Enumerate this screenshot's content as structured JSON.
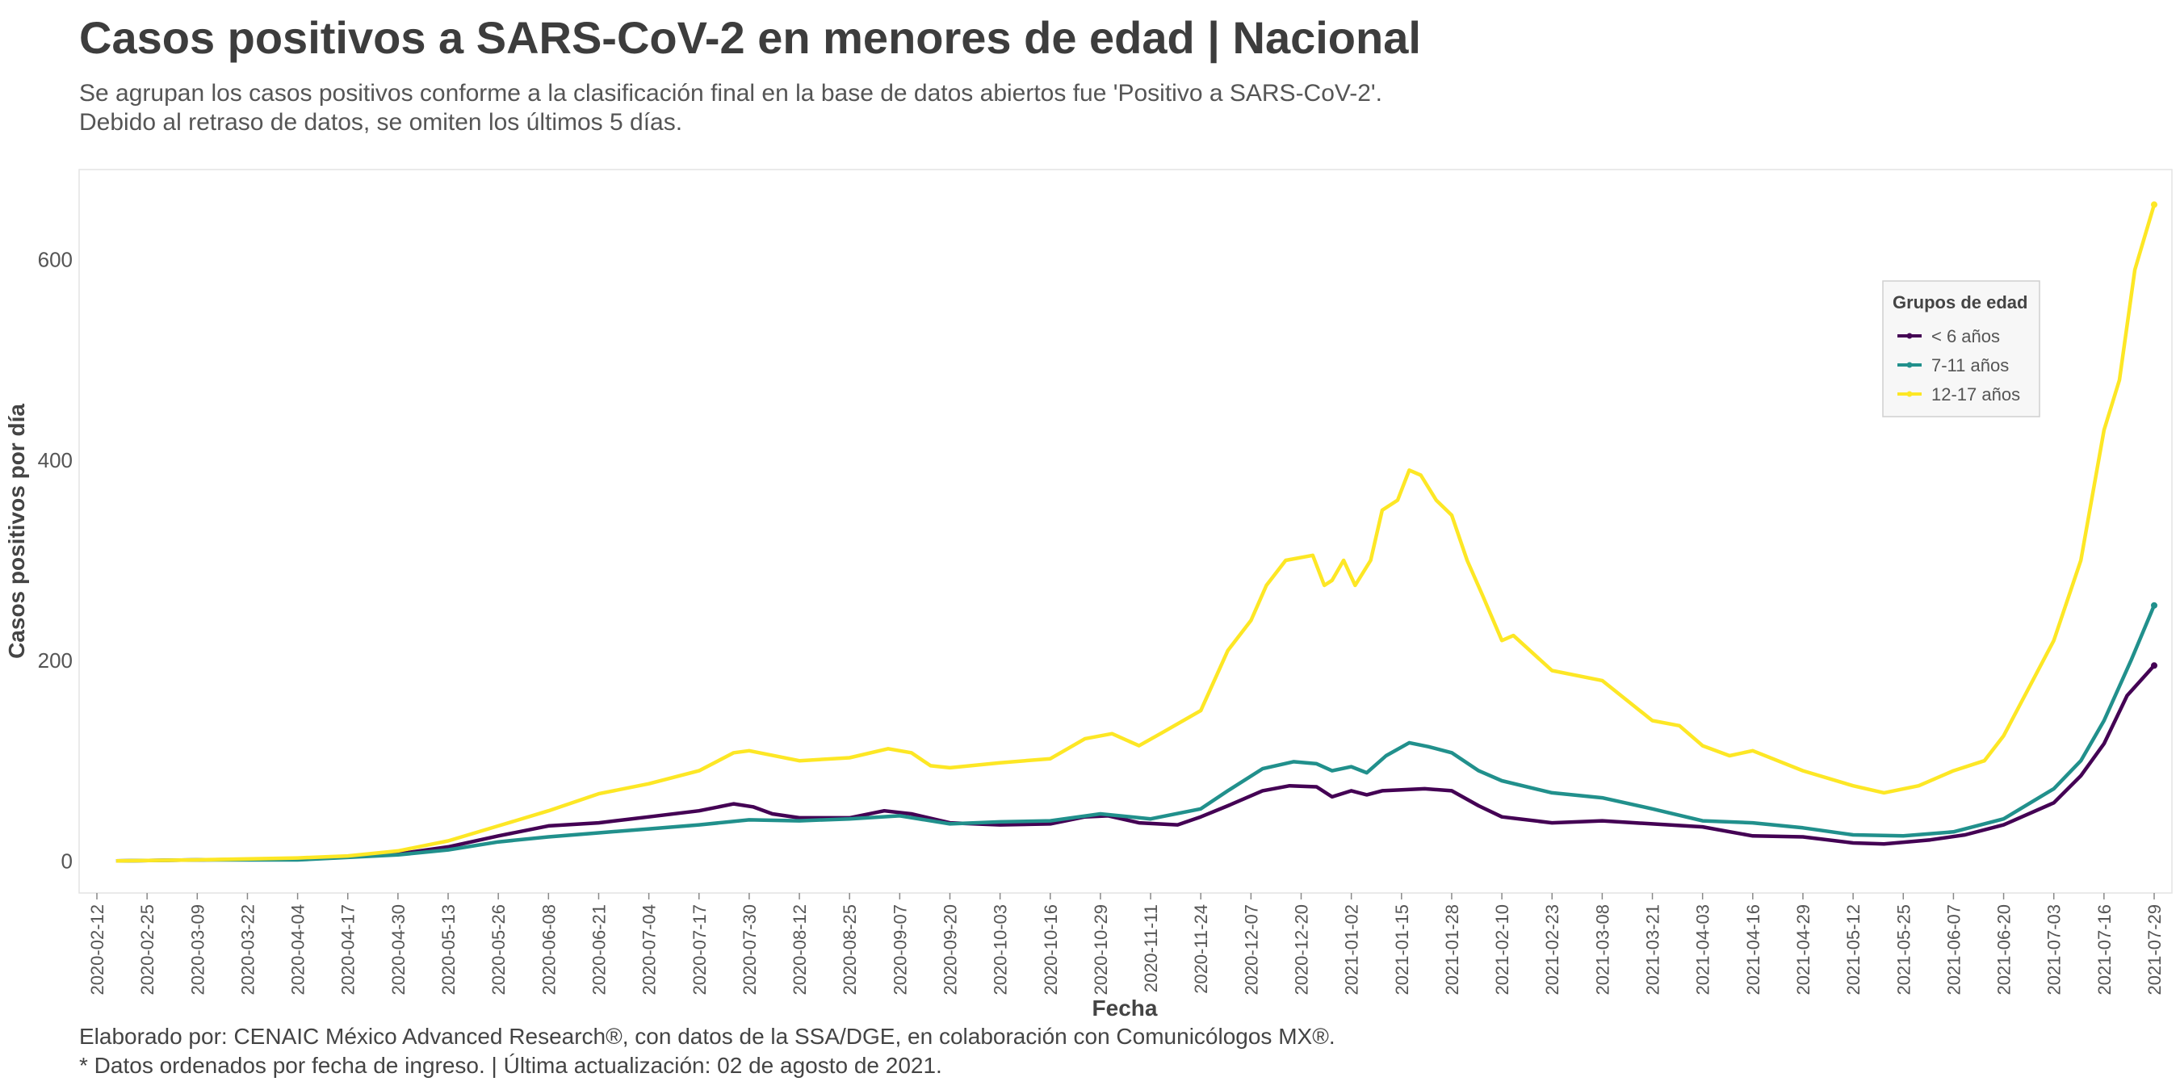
{
  "title": "Casos positivos a SARS-CoV-2 en menores de edad | Nacional",
  "subtitle": [
    "Se agrupan los casos positivos conforme a la clasificación final en la base de datos abiertos fue 'Positivo a SARS-CoV-2'.",
    "Debido al retraso de datos, se omiten los últimos 5 días."
  ],
  "caption": [
    "Elaborado por: CENAIC México Advanced Research®, con datos de la SSA/DGE, en colaboración con Comunicólogos MX®.",
    "* Datos ordenados por fecha de ingreso. | Última actualización: 02 de agosto de 2021."
  ],
  "chart_data": {
    "type": "line",
    "title": "Casos positivos a SARS-CoV-2 en menores de edad | Nacional",
    "xlabel": "Fecha",
    "ylabel": "Casos positivos por día",
    "ylim": [
      -32,
      690
    ],
    "yticks": [
      0,
      200,
      400,
      600
    ],
    "xlim": [
      "2020-02-12",
      "2021-07-29"
    ],
    "x_tick_labels": [
      "2020-02-12",
      "2020-02-25",
      "2020-03-09",
      "2020-03-22",
      "2020-04-04",
      "2020-04-17",
      "2020-04-30",
      "2020-05-13",
      "2020-05-26",
      "2020-06-08",
      "2020-06-21",
      "2020-07-04",
      "2020-07-17",
      "2020-07-30",
      "2020-08-12",
      "2020-08-25",
      "2020-09-07",
      "2020-09-20",
      "2020-10-03",
      "2020-10-16",
      "2020-10-29",
      "2020-11-11",
      "2020-11-24",
      "2020-12-07",
      "2020-12-20",
      "2021-01-02",
      "2021-01-15",
      "2021-01-28",
      "2021-02-10",
      "2021-02-23",
      "2021-03-08",
      "2021-03-21",
      "2021-04-03",
      "2021-04-16",
      "2021-04-29",
      "2021-05-12",
      "2021-05-25",
      "2021-06-07",
      "2021-06-20",
      "2021-07-03",
      "2021-07-16",
      "2021-07-29"
    ],
    "grid": false,
    "legend": {
      "title": "Grupos de edad",
      "placement": "top-right"
    },
    "series": [
      {
        "name": "< 6 años",
        "color": "#440154",
        "points": [
          [
            "2020-02-17",
            0
          ],
          [
            "2020-03-09",
            1
          ],
          [
            "2020-04-04",
            2
          ],
          [
            "2020-04-30",
            7
          ],
          [
            "2020-05-13",
            14
          ],
          [
            "2020-05-26",
            25
          ],
          [
            "2020-06-08",
            35
          ],
          [
            "2020-06-21",
            38
          ],
          [
            "2020-07-04",
            44
          ],
          [
            "2020-07-17",
            50
          ],
          [
            "2020-07-26",
            57
          ],
          [
            "2020-07-31",
            54
          ],
          [
            "2020-08-05",
            47
          ],
          [
            "2020-08-12",
            43
          ],
          [
            "2020-08-25",
            43
          ],
          [
            "2020-09-03",
            50
          ],
          [
            "2020-09-10",
            47
          ],
          [
            "2020-09-20",
            38
          ],
          [
            "2020-10-03",
            36
          ],
          [
            "2020-10-16",
            37
          ],
          [
            "2020-10-25",
            44
          ],
          [
            "2020-10-31",
            45
          ],
          [
            "2020-11-08",
            38
          ],
          [
            "2020-11-18",
            36
          ],
          [
            "2020-11-24",
            44
          ],
          [
            "2020-12-01",
            55
          ],
          [
            "2020-12-10",
            70
          ],
          [
            "2020-12-17",
            75
          ],
          [
            "2020-12-24",
            74
          ],
          [
            "2020-12-28",
            64
          ],
          [
            "2021-01-02",
            70
          ],
          [
            "2021-01-06",
            66
          ],
          [
            "2021-01-10",
            70
          ],
          [
            "2021-01-15",
            71
          ],
          [
            "2021-01-21",
            72
          ],
          [
            "2021-01-28",
            70
          ],
          [
            "2021-02-04",
            55
          ],
          [
            "2021-02-10",
            44
          ],
          [
            "2021-02-23",
            38
          ],
          [
            "2021-03-08",
            40
          ],
          [
            "2021-03-21",
            37
          ],
          [
            "2021-04-03",
            34
          ],
          [
            "2021-04-16",
            25
          ],
          [
            "2021-04-29",
            24
          ],
          [
            "2021-05-12",
            18
          ],
          [
            "2021-05-20",
            17
          ],
          [
            "2021-06-01",
            21
          ],
          [
            "2021-06-10",
            26
          ],
          [
            "2021-06-20",
            36
          ],
          [
            "2021-07-03",
            58
          ],
          [
            "2021-07-10",
            85
          ],
          [
            "2021-07-16",
            117
          ],
          [
            "2021-07-22",
            165
          ],
          [
            "2021-07-29",
            195
          ]
        ]
      },
      {
        "name": "7-11 años",
        "color": "#21908C",
        "points": [
          [
            "2020-02-17",
            0
          ],
          [
            "2020-03-09",
            1
          ],
          [
            "2020-04-04",
            1
          ],
          [
            "2020-04-30",
            6
          ],
          [
            "2020-05-13",
            11
          ],
          [
            "2020-05-26",
            19
          ],
          [
            "2020-06-08",
            24
          ],
          [
            "2020-06-21",
            28
          ],
          [
            "2020-07-04",
            32
          ],
          [
            "2020-07-17",
            36
          ],
          [
            "2020-07-30",
            41
          ],
          [
            "2020-08-12",
            40
          ],
          [
            "2020-08-25",
            42
          ],
          [
            "2020-09-07",
            45
          ],
          [
            "2020-09-20",
            37
          ],
          [
            "2020-10-03",
            39
          ],
          [
            "2020-10-16",
            40
          ],
          [
            "2020-10-29",
            47
          ],
          [
            "2020-11-11",
            42
          ],
          [
            "2020-11-24",
            52
          ],
          [
            "2020-12-01",
            70
          ],
          [
            "2020-12-10",
            92
          ],
          [
            "2020-12-18",
            99
          ],
          [
            "2020-12-24",
            97
          ],
          [
            "2020-12-28",
            90
          ],
          [
            "2021-01-02",
            94
          ],
          [
            "2021-01-06",
            88
          ],
          [
            "2021-01-11",
            105
          ],
          [
            "2021-01-17",
            118
          ],
          [
            "2021-01-22",
            114
          ],
          [
            "2021-01-28",
            108
          ],
          [
            "2021-02-04",
            90
          ],
          [
            "2021-02-10",
            80
          ],
          [
            "2021-02-23",
            68
          ],
          [
            "2021-03-08",
            63
          ],
          [
            "2021-03-21",
            52
          ],
          [
            "2021-04-03",
            40
          ],
          [
            "2021-04-16",
            38
          ],
          [
            "2021-04-29",
            33
          ],
          [
            "2021-05-12",
            26
          ],
          [
            "2021-05-25",
            25
          ],
          [
            "2021-06-07",
            29
          ],
          [
            "2021-06-20",
            42
          ],
          [
            "2021-07-03",
            72
          ],
          [
            "2021-07-10",
            100
          ],
          [
            "2021-07-16",
            140
          ],
          [
            "2021-07-23",
            200
          ],
          [
            "2021-07-29",
            255
          ]
        ]
      },
      {
        "name": "12-17 años",
        "color": "#FDE725",
        "points": [
          [
            "2020-02-17",
            0
          ],
          [
            "2020-03-09",
            1
          ],
          [
            "2020-04-04",
            3
          ],
          [
            "2020-04-17",
            5
          ],
          [
            "2020-04-30",
            10
          ],
          [
            "2020-05-13",
            20
          ],
          [
            "2020-05-26",
            35
          ],
          [
            "2020-06-08",
            50
          ],
          [
            "2020-06-21",
            67
          ],
          [
            "2020-07-04",
            77
          ],
          [
            "2020-07-17",
            90
          ],
          [
            "2020-07-26",
            108
          ],
          [
            "2020-07-30",
            110
          ],
          [
            "2020-08-12",
            100
          ],
          [
            "2020-08-25",
            103
          ],
          [
            "2020-09-04",
            112
          ],
          [
            "2020-09-10",
            108
          ],
          [
            "2020-09-15",
            95
          ],
          [
            "2020-09-20",
            93
          ],
          [
            "2020-10-03",
            98
          ],
          [
            "2020-10-16",
            102
          ],
          [
            "2020-10-25",
            122
          ],
          [
            "2020-11-01",
            127
          ],
          [
            "2020-11-08",
            115
          ],
          [
            "2020-11-14",
            128
          ],
          [
            "2020-11-24",
            150
          ],
          [
            "2020-12-01",
            210
          ],
          [
            "2020-12-07",
            240
          ],
          [
            "2020-12-11",
            275
          ],
          [
            "2020-12-16",
            300
          ],
          [
            "2020-12-23",
            305
          ],
          [
            "2020-12-26",
            275
          ],
          [
            "2020-12-28",
            280
          ],
          [
            "2020-12-31",
            300
          ],
          [
            "2021-01-03",
            275
          ],
          [
            "2021-01-07",
            300
          ],
          [
            "2021-01-10",
            350
          ],
          [
            "2021-01-14",
            360
          ],
          [
            "2021-01-17",
            390
          ],
          [
            "2021-01-20",
            385
          ],
          [
            "2021-01-24",
            360
          ],
          [
            "2021-01-28",
            345
          ],
          [
            "2021-02-01",
            300
          ],
          [
            "2021-02-05",
            265
          ],
          [
            "2021-02-10",
            220
          ],
          [
            "2021-02-13",
            225
          ],
          [
            "2021-02-23",
            190
          ],
          [
            "2021-03-08",
            180
          ],
          [
            "2021-03-21",
            140
          ],
          [
            "2021-03-28",
            135
          ],
          [
            "2021-04-03",
            115
          ],
          [
            "2021-04-10",
            105
          ],
          [
            "2021-04-16",
            110
          ],
          [
            "2021-04-29",
            90
          ],
          [
            "2021-05-12",
            75
          ],
          [
            "2021-05-20",
            68
          ],
          [
            "2021-05-29",
            75
          ],
          [
            "2021-06-07",
            90
          ],
          [
            "2021-06-15",
            100
          ],
          [
            "2021-06-20",
            125
          ],
          [
            "2021-07-03",
            220
          ],
          [
            "2021-07-10",
            300
          ],
          [
            "2021-07-16",
            430
          ],
          [
            "2021-07-20",
            480
          ],
          [
            "2021-07-24",
            590
          ],
          [
            "2021-07-29",
            655
          ]
        ]
      }
    ]
  }
}
